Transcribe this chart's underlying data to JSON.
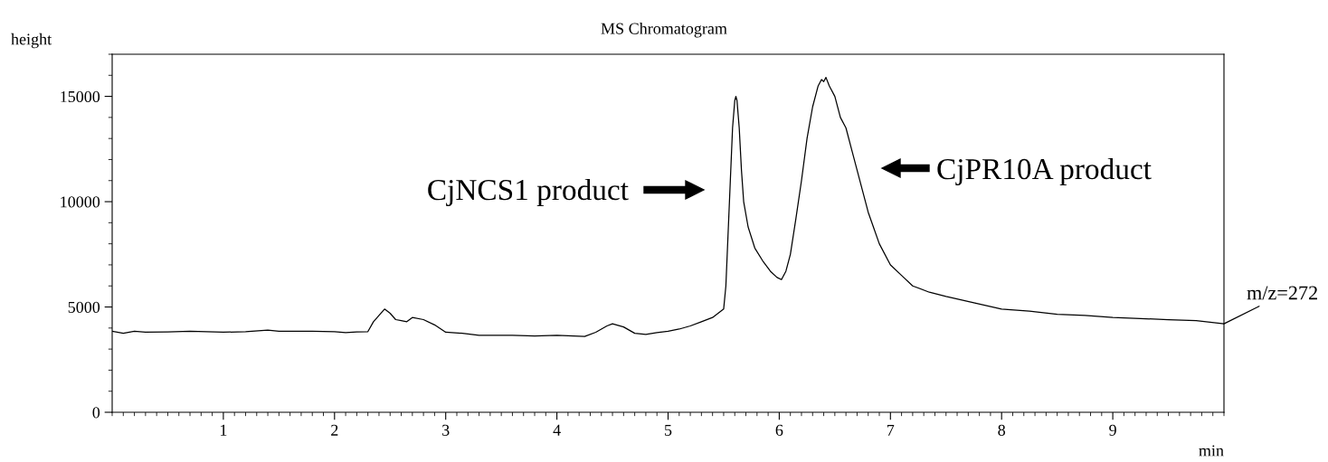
{
  "chart_data": {
    "type": "line",
    "title": "MS Chromatogram",
    "xlabel": "min",
    "ylabel": "height",
    "x": [
      0,
      0.1,
      0.2,
      0.3,
      0.5,
      0.7,
      1.0,
      1.2,
      1.4,
      1.5,
      1.7,
      1.8,
      2.0,
      2.1,
      2.2,
      2.3,
      2.35,
      2.4,
      2.45,
      2.5,
      2.55,
      2.6,
      2.65,
      2.7,
      2.8,
      2.9,
      3.0,
      3.15,
      3.3,
      3.5,
      3.6,
      3.8,
      4.0,
      4.15,
      4.25,
      4.35,
      4.45,
      4.5,
      4.6,
      4.7,
      4.8,
      4.9,
      5.0,
      5.1,
      5.2,
      5.3,
      5.4,
      5.5,
      5.52,
      5.54,
      5.56,
      5.58,
      5.6,
      5.61,
      5.62,
      5.64,
      5.66,
      5.68,
      5.72,
      5.78,
      5.85,
      5.92,
      5.98,
      6.02,
      6.06,
      6.1,
      6.15,
      6.2,
      6.25,
      6.3,
      6.35,
      6.38,
      6.4,
      6.42,
      6.45,
      6.5,
      6.55,
      6.6,
      6.65,
      6.7,
      6.75,
      6.8,
      6.9,
      7.0,
      7.1,
      7.2,
      7.35,
      7.5,
      7.75,
      8.0,
      8.25,
      8.5,
      8.75,
      9.0,
      9.25,
      9.5,
      9.75,
      10.0
    ],
    "series": [
      {
        "color": "#000000",
        "values": [
          3850,
          3750,
          3850,
          3800,
          3820,
          3850,
          3800,
          3830,
          3900,
          3850,
          3850,
          3850,
          3830,
          3780,
          3820,
          3830,
          4300,
          4600,
          4900,
          4700,
          4400,
          4350,
          4300,
          4500,
          4400,
          4150,
          3800,
          3750,
          3650,
          3650,
          3650,
          3620,
          3650,
          3620,
          3600,
          3800,
          4100,
          4200,
          4050,
          3750,
          3700,
          3780,
          3850,
          3950,
          4100,
          4300,
          4500,
          4900,
          6000,
          8500,
          11000,
          13500,
          14800,
          15000,
          14800,
          13500,
          11500,
          10000,
          8800,
          7800,
          7200,
          6700,
          6400,
          6300,
          6700,
          7500,
          9200,
          11000,
          13000,
          14500,
          15500,
          15800,
          15700,
          15900,
          15500,
          15000,
          14000,
          13500,
          12500,
          11500,
          10500,
          9500,
          8000,
          7000,
          6500,
          6000,
          5700,
          5500,
          5200,
          4900,
          4800,
          4650,
          4600,
          4500,
          4450,
          4400,
          4350,
          4200
        ]
      }
    ],
    "xlim": [
      0,
      10
    ],
    "ylim": [
      0,
      17000
    ],
    "xticks": [
      1,
      2,
      3,
      4,
      5,
      6,
      7,
      8,
      9
    ],
    "yticks": [
      0,
      5000,
      10000,
      15000
    ],
    "grid": false,
    "legend": false,
    "marker": "none",
    "line_style": "solid",
    "annotations": [
      "CjNCS1 product",
      "CjPR10A product",
      {
        "text": "m/z=272",
        "x": 10.0,
        "y": 4200
      }
    ]
  }
}
